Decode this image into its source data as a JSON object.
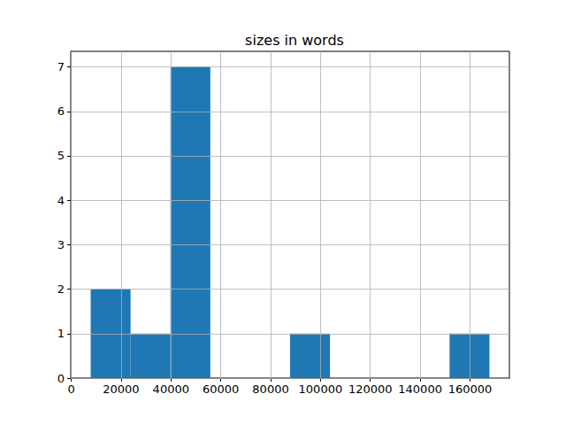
{
  "chart_data": {
    "type": "histogram",
    "title": "sizes in words",
    "bins": [
      7800,
      23800,
      39800,
      55800,
      71800,
      87800,
      103800,
      119800,
      135800,
      151800,
      167800
    ],
    "counts": [
      2,
      1,
      7,
      0,
      0,
      1,
      0,
      0,
      0,
      1
    ],
    "color": "#1f77b4",
    "xlim": [
      -200,
      175800
    ],
    "xticks": [
      0,
      20000,
      40000,
      60000,
      80000,
      100000,
      120000,
      140000,
      160000
    ],
    "ylim": [
      0,
      7.35
    ],
    "yticks": [
      0,
      1,
      2,
      3,
      4,
      5,
      6,
      7
    ],
    "grid": true
  }
}
